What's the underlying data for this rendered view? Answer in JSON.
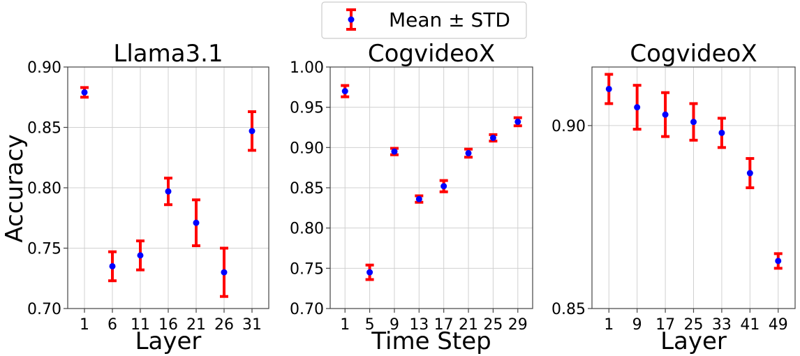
{
  "legend": {
    "label": "Mean ± STD",
    "marker_color": "#0000ff",
    "error_color": "#ff0000"
  },
  "ylabel": "Accuracy",
  "chart_data": [
    {
      "type": "scatter",
      "title": "Llama3.1",
      "xlabel": "Layer",
      "ylabel": "Accuracy",
      "categories": [
        "1",
        "6",
        "11",
        "16",
        "21",
        "26",
        "31"
      ],
      "values": [
        0.879,
        0.735,
        0.744,
        0.797,
        0.771,
        0.73,
        0.847
      ],
      "std": [
        0.004,
        0.012,
        0.012,
        0.011,
        0.019,
        0.02,
        0.016
      ],
      "ylim": [
        0.7,
        0.9
      ],
      "yticks": [
        "0.70",
        "0.75",
        "0.80",
        "0.85",
        "0.90"
      ],
      "ytick_values": [
        0.7,
        0.75,
        0.8,
        0.85,
        0.9
      ],
      "grid": true
    },
    {
      "type": "scatter",
      "title": "CogvideoX",
      "xlabel": "Time Step",
      "ylabel": "",
      "categories": [
        "1",
        "5",
        "9",
        "13",
        "17",
        "21",
        "25",
        "29"
      ],
      "values": [
        0.97,
        0.745,
        0.895,
        0.836,
        0.852,
        0.893,
        0.912,
        0.932
      ],
      "std": [
        0.007,
        0.009,
        0.004,
        0.004,
        0.007,
        0.005,
        0.004,
        0.005
      ],
      "ylim": [
        0.7,
        1.0
      ],
      "yticks": [
        "0.70",
        "0.75",
        "0.80",
        "0.85",
        "0.90",
        "0.95",
        "1.00"
      ],
      "ytick_values": [
        0.7,
        0.75,
        0.8,
        0.85,
        0.9,
        0.95,
        1.0
      ],
      "grid": true
    },
    {
      "type": "scatter",
      "title": "CogvideoX",
      "xlabel": "Layer",
      "ylabel": "",
      "categories": [
        "1",
        "9",
        "17",
        "25",
        "33",
        "41",
        "49"
      ],
      "values": [
        0.91,
        0.905,
        0.903,
        0.901,
        0.898,
        0.887,
        0.863
      ],
      "std": [
        0.004,
        0.006,
        0.006,
        0.005,
        0.004,
        0.004,
        0.002
      ],
      "ylim": [
        0.85,
        0.916
      ],
      "yticks": [
        "0.85",
        "0.90"
      ],
      "ytick_values": [
        0.85,
        0.9
      ],
      "grid": true
    }
  ]
}
